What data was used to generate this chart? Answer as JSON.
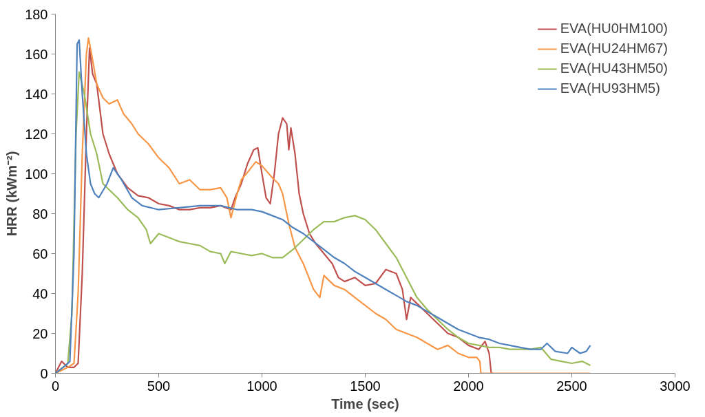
{
  "chart_data": {
    "type": "line",
    "xlabel": "Time (sec)",
    "ylabel": "HRR (kWm⁻²)",
    "xlim": [
      0,
      3000
    ],
    "ylim": [
      0,
      180
    ],
    "xticks": [
      0,
      500,
      1000,
      1500,
      2000,
      2500,
      3000
    ],
    "yticks": [
      0,
      20,
      40,
      60,
      80,
      100,
      120,
      140,
      160,
      180
    ],
    "grid": false,
    "legend": "top right",
    "marker": "none",
    "line_style": "solid",
    "series": [
      {
        "name": "EVA(HU0HM100)",
        "color": "#c0504d",
        "x": [
          0,
          30,
          60,
          90,
          110,
          130,
          150,
          165,
          180,
          200,
          230,
          260,
          300,
          350,
          400,
          450,
          500,
          550,
          600,
          650,
          700,
          750,
          800,
          850,
          870,
          900,
          930,
          960,
          980,
          1000,
          1020,
          1040,
          1060,
          1080,
          1100,
          1120,
          1130,
          1140,
          1160,
          1180,
          1200,
          1230,
          1260,
          1300,
          1340,
          1370,
          1400,
          1450,
          1500,
          1550,
          1600,
          1650,
          1680,
          1700,
          1720,
          1760,
          1800,
          1850,
          1900,
          1950,
          2000,
          2050,
          2080,
          2100,
          2110,
          2120
        ],
        "values": [
          0,
          6,
          3,
          3,
          5,
          50,
          120,
          163,
          150,
          145,
          120,
          110,
          100,
          93,
          89,
          88,
          85,
          84,
          82,
          82,
          83,
          83,
          84,
          82,
          88,
          95,
          105,
          112,
          113,
          100,
          88,
          85,
          100,
          120,
          128,
          125,
          112,
          123,
          110,
          90,
          80,
          70,
          65,
          60,
          55,
          48,
          46,
          48,
          44,
          45,
          52,
          50,
          42,
          27,
          38,
          34,
          30,
          25,
          20,
          18,
          14,
          12,
          16,
          10,
          0,
          0
        ]
      },
      {
        "name": "EVA(HU24HM67)",
        "color": "#f79646",
        "x": [
          0,
          60,
          90,
          110,
          130,
          150,
          160,
          175,
          200,
          230,
          260,
          300,
          330,
          370,
          400,
          450,
          500,
          550,
          600,
          650,
          700,
          750,
          800,
          830,
          850,
          880,
          900,
          940,
          970,
          1000,
          1050,
          1080,
          1100,
          1130,
          1160,
          1200,
          1250,
          1280,
          1300,
          1350,
          1400,
          1450,
          1500,
          1550,
          1600,
          1650,
          1700,
          1750,
          1800,
          1850,
          1900,
          1950,
          2000,
          2040,
          2055,
          2060,
          2590
        ],
        "values": [
          0,
          3,
          5,
          40,
          110,
          160,
          168,
          160,
          145,
          138,
          135,
          137,
          130,
          125,
          120,
          115,
          108,
          103,
          95,
          97,
          92,
          92,
          93,
          88,
          78,
          90,
          97,
          102,
          106,
          104,
          98,
          95,
          90,
          75,
          63,
          55,
          42,
          38,
          49,
          44,
          42,
          38,
          34,
          30,
          27,
          22,
          20,
          18,
          15,
          12,
          14,
          10,
          8,
          8,
          6,
          0,
          0
        ]
      },
      {
        "name": "EVA(HU43HM50)",
        "color": "#9bbb59",
        "x": [
          0,
          60,
          80,
          100,
          115,
          140,
          170,
          200,
          230,
          260,
          300,
          350,
          400,
          440,
          460,
          500,
          550,
          600,
          650,
          700,
          750,
          800,
          820,
          850,
          900,
          950,
          1000,
          1050,
          1100,
          1150,
          1200,
          1250,
          1300,
          1350,
          1400,
          1450,
          1500,
          1550,
          1600,
          1650,
          1700,
          1750,
          1800,
          1850,
          1900,
          1950,
          2000,
          2050,
          2100,
          2150,
          2200,
          2250,
          2300,
          2350,
          2400,
          2450,
          2500,
          2550,
          2590
        ],
        "values": [
          0,
          5,
          30,
          120,
          151,
          140,
          120,
          110,
          95,
          92,
          88,
          82,
          78,
          72,
          65,
          70,
          68,
          66,
          65,
          64,
          61,
          60,
          55,
          61,
          60,
          59,
          60,
          58,
          58,
          62,
          67,
          72,
          76,
          76,
          78,
          79,
          77,
          72,
          65,
          58,
          48,
          38,
          32,
          27,
          22,
          18,
          15,
          14,
          13,
          13,
          12,
          12,
          12,
          13,
          7,
          6,
          5,
          6,
          4
        ]
      },
      {
        "name": "EVA(HU93HM5)",
        "color": "#4f81bd",
        "x": [
          0,
          50,
          70,
          90,
          105,
          115,
          130,
          150,
          170,
          190,
          210,
          250,
          280,
          320,
          370,
          420,
          500,
          600,
          700,
          800,
          880,
          950,
          1000,
          1050,
          1100,
          1150,
          1200,
          1250,
          1300,
          1350,
          1400,
          1450,
          1500,
          1550,
          1600,
          1650,
          1700,
          1750,
          1800,
          1850,
          1900,
          1950,
          2000,
          2050,
          2100,
          2150,
          2200,
          2250,
          2300,
          2350,
          2380,
          2420,
          2480,
          2500,
          2540,
          2570,
          2590
        ],
        "values": [
          0,
          4,
          6,
          60,
          165,
          167,
          140,
          110,
          95,
          90,
          88,
          95,
          103,
          97,
          88,
          84,
          82,
          83,
          84,
          84,
          82,
          82,
          81,
          79,
          77,
          73,
          70,
          66,
          62,
          58,
          55,
          51,
          48,
          45,
          42,
          39,
          36,
          34,
          31,
          28,
          25,
          22,
          20,
          18,
          17,
          15,
          14,
          13,
          12,
          12,
          15,
          11,
          10,
          13,
          10,
          11,
          14
        ]
      }
    ]
  }
}
